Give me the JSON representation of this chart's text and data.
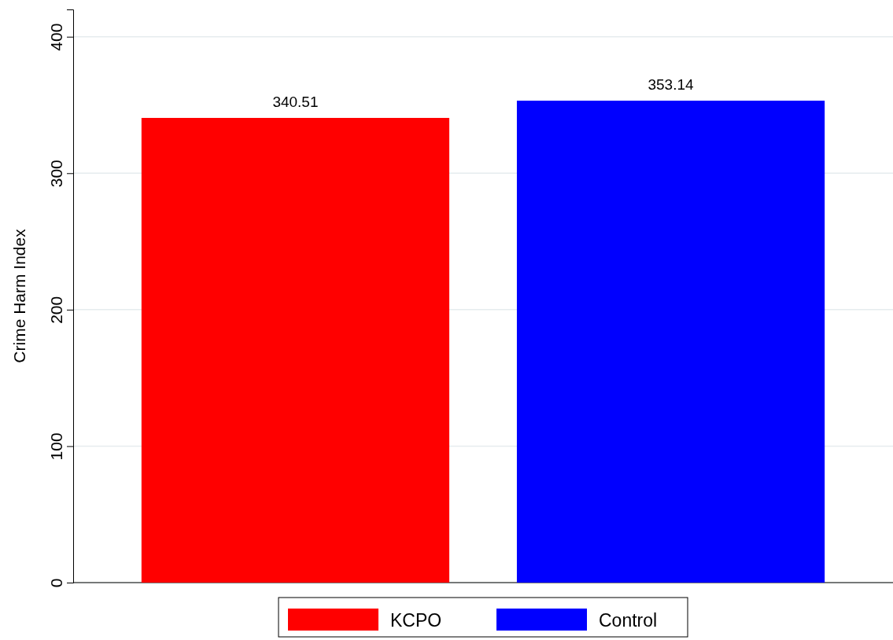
{
  "chart_data": {
    "type": "bar",
    "ylabel": "Crime Harm Index",
    "categories": [
      null
    ],
    "series": [
      {
        "name": "KCPO",
        "color": "#ff0000",
        "values": [
          340.51
        ]
      },
      {
        "name": "Control",
        "color": "#0000ff",
        "values": [
          353.14
        ]
      }
    ],
    "ylim": [
      0,
      420
    ],
    "yticks": [
      0,
      100,
      200,
      300,
      400
    ],
    "grid": "y",
    "data_labels": true,
    "legend": "bottom"
  }
}
